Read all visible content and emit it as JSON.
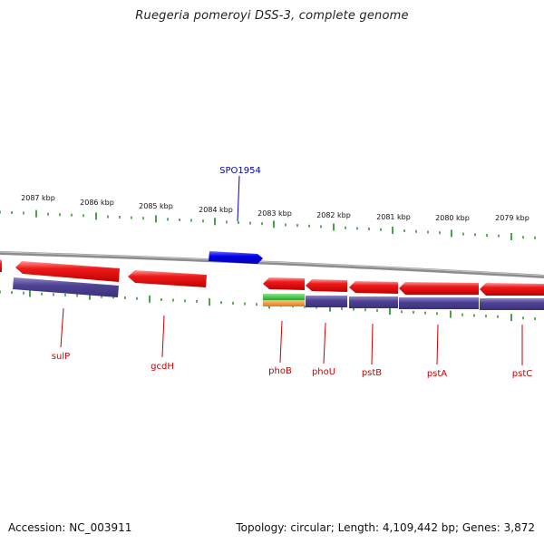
{
  "title": "Ruegeria pomeroyi DSS-3, complete genome",
  "footer": {
    "accession": "Accession: NC_003911",
    "summary": "Topology: circular; Length: 4,109,442 bp; Genes: 3,872"
  },
  "colors": {
    "backbone": "#8c8c8c",
    "tick": "#1a8c1a",
    "cds": "#e00000",
    "cds_highlight": "#ff8a8a",
    "cog": "#4b3f8e",
    "cog_highlight": "#9a90cc",
    "forward_gene": "#0000e0",
    "forward_label": "#0000cc",
    "label": "#cc0000",
    "green_feature": "#33bb33",
    "orange_feature": "#f08a1a"
  },
  "ruler": {
    "labels": [
      "2087 kbp",
      "2086 kbp",
      "2085 kbp",
      "2084 kbp",
      "2083 kbp",
      "2082 kbp",
      "2081 kbp",
      "2080 kbp",
      "2079 kbp"
    ]
  },
  "forward_genes": [
    {
      "label": "SPO1954"
    }
  ],
  "reverse_genes": [
    {
      "label": ""
    },
    {
      "label": "sulP"
    },
    {
      "label": "gcdH"
    },
    {
      "label": "phoB"
    },
    {
      "label": "phoU"
    },
    {
      "label": "pstB"
    },
    {
      "label": "pstA"
    },
    {
      "label": "pstC"
    }
  ],
  "feature_tracks": [
    "cog",
    "green",
    "orange"
  ]
}
